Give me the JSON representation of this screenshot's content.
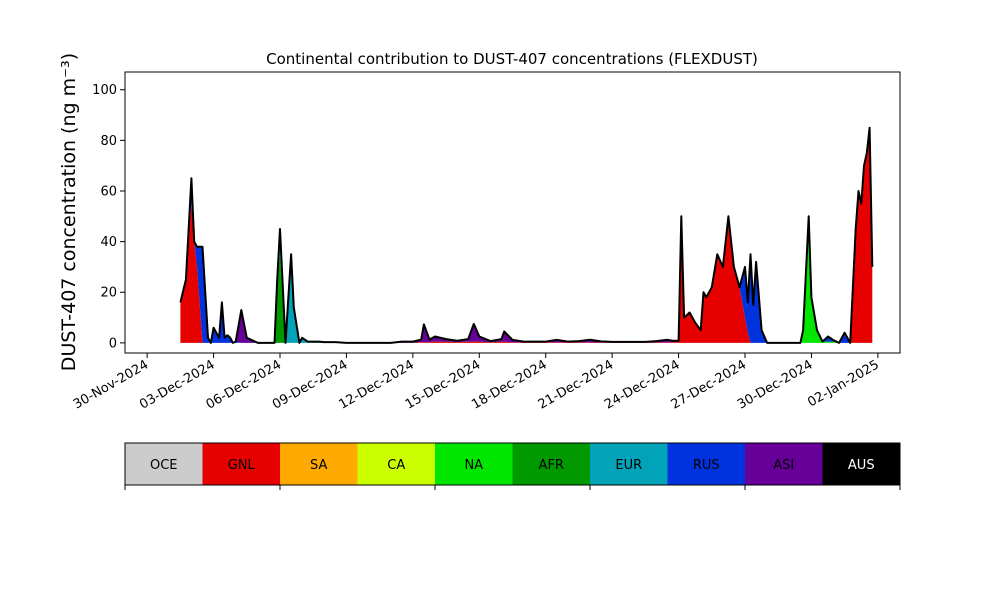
{
  "chart_data": {
    "type": "area",
    "title": "Continental contribution to DUST-407 concentrations (FLEXDUST)",
    "ylabel": "DUST-407 concentration (ng m⁻³)",
    "xlabel": "",
    "ylim": [
      -4,
      107
    ],
    "yticks": [
      0,
      20,
      40,
      60,
      80,
      100
    ],
    "xlim": [
      "2024-11-29T00:00",
      "2025-01-03T00:00"
    ],
    "xticks": [
      {
        "date": "2024-11-30",
        "label": "30-Nov-2024"
      },
      {
        "date": "2024-12-03",
        "label": "03-Dec-2024"
      },
      {
        "date": "2024-12-06",
        "label": "06-Dec-2024"
      },
      {
        "date": "2024-12-09",
        "label": "09-Dec-2024"
      },
      {
        "date": "2024-12-12",
        "label": "12-Dec-2024"
      },
      {
        "date": "2024-12-15",
        "label": "15-Dec-2024"
      },
      {
        "date": "2024-12-18",
        "label": "18-Dec-2024"
      },
      {
        "date": "2024-12-21",
        "label": "21-Dec-2024"
      },
      {
        "date": "2024-12-24",
        "label": "24-Dec-2024"
      },
      {
        "date": "2024-12-27",
        "label": "27-Dec-2024"
      },
      {
        "date": "2024-12-30",
        "label": "30-Dec-2024"
      },
      {
        "date": "2025-01-02",
        "label": "02-Jan-2025"
      }
    ],
    "grid": false,
    "legend": {
      "placement": "below",
      "entries": [
        {
          "label": "OCE",
          "color": "#cccccc"
        },
        {
          "label": "GNL",
          "color": "#e60000"
        },
        {
          "label": "SA",
          "color": "#ffaa00"
        },
        {
          "label": "CA",
          "color": "#ccff00"
        },
        {
          "label": "NA",
          "color": "#00e600"
        },
        {
          "label": "AFR",
          "color": "#009900"
        },
        {
          "label": "EUR",
          "color": "#00a3b8"
        },
        {
          "label": "RUS",
          "color": "#0033dd"
        },
        {
          "label": "ASI",
          "color": "#660099"
        },
        {
          "label": "AUS",
          "color": "#000000"
        }
      ]
    },
    "stack_order": [
      "GNL",
      "NA",
      "AFR",
      "EUR",
      "RUS",
      "ASI"
    ],
    "x": [
      "2024-12-01T12:00",
      "2024-12-01T18:00",
      "2024-12-02T00:00",
      "2024-12-02T03:00",
      "2024-12-02T06:00",
      "2024-12-02T12:00",
      "2024-12-02T18:00",
      "2024-12-02T21:00",
      "2024-12-03T00:00",
      "2024-12-03T06:00",
      "2024-12-03T09:00",
      "2024-12-03T12:00",
      "2024-12-03T15:00",
      "2024-12-03T18:00",
      "2024-12-03T21:00",
      "2024-12-04T00:00",
      "2024-12-04T06:00",
      "2024-12-04T12:00",
      "2024-12-04T18:00",
      "2024-12-05T00:00",
      "2024-12-05T06:00",
      "2024-12-05T12:00",
      "2024-12-05T18:00",
      "2024-12-05T21:00",
      "2024-12-06T00:00",
      "2024-12-06T06:00",
      "2024-12-06T12:00",
      "2024-12-06T15:00",
      "2024-12-06T21:00",
      "2024-12-07T00:00",
      "2024-12-07T06:00",
      "2024-12-07T12:00",
      "2024-12-07T18:00",
      "2024-12-08T00:00",
      "2024-12-08T12:00",
      "2024-12-09T00:00",
      "2024-12-10T00:00",
      "2024-12-11T00:00",
      "2024-12-11T12:00",
      "2024-12-12T00:00",
      "2024-12-12T09:00",
      "2024-12-12T12:00",
      "2024-12-12T18:00",
      "2024-12-13T00:00",
      "2024-12-13T12:00",
      "2024-12-14T00:00",
      "2024-12-14T12:00",
      "2024-12-14T18:00",
      "2024-12-15T00:00",
      "2024-12-15T12:00",
      "2024-12-16T00:00",
      "2024-12-16T03:00",
      "2024-12-16T12:00",
      "2024-12-17T00:00",
      "2024-12-17T12:00",
      "2024-12-18T00:00",
      "2024-12-18T12:00",
      "2024-12-19T00:00",
      "2024-12-19T12:00",
      "2024-12-20T00:00",
      "2024-12-20T12:00",
      "2024-12-21T00:00",
      "2024-12-22T00:00",
      "2024-12-22T12:00",
      "2024-12-23T00:00",
      "2024-12-23T12:00",
      "2024-12-23T18:00",
      "2024-12-24T00:00",
      "2024-12-24T03:00",
      "2024-12-24T06:00",
      "2024-12-24T12:00",
      "2024-12-24T18:00",
      "2024-12-25T00:00",
      "2024-12-25T03:00",
      "2024-12-25T06:00",
      "2024-12-25T12:00",
      "2024-12-25T18:00",
      "2024-12-26T00:00",
      "2024-12-26T06:00",
      "2024-12-26T12:00",
      "2024-12-26T18:00",
      "2024-12-27T00:00",
      "2024-12-27T03:00",
      "2024-12-27T06:00",
      "2024-12-27T09:00",
      "2024-12-27T12:00",
      "2024-12-27T18:00",
      "2024-12-28T00:00",
      "2024-12-28T03:00",
      "2024-12-28T06:00",
      "2024-12-28T12:00",
      "2024-12-28T18:00",
      "2024-12-29T00:00",
      "2024-12-29T06:00",
      "2024-12-29T12:00",
      "2024-12-29T15:00",
      "2024-12-29T21:00",
      "2024-12-30T00:00",
      "2024-12-30T06:00",
      "2024-12-30T12:00",
      "2024-12-30T18:00",
      "2024-12-31T00:00",
      "2024-12-31T06:00",
      "2024-12-31T12:00",
      "2024-12-31T18:00",
      "2025-01-01T00:00",
      "2025-01-01T03:00",
      "2025-01-01T06:00",
      "2025-01-01T09:00",
      "2025-01-01T12:00",
      "2025-01-01T15:00",
      "2025-01-01T18:00"
    ],
    "series": [
      {
        "name": "GNL",
        "values": [
          16,
          25,
          55,
          40,
          30,
          0,
          0,
          0,
          0,
          0,
          0,
          0,
          0,
          0,
          0,
          0,
          0,
          0,
          0,
          0,
          0,
          0,
          0,
          0,
          0,
          0,
          0,
          0,
          0,
          0,
          0,
          0,
          0,
          0,
          0,
          0,
          0,
          0,
          0,
          0,
          0.3,
          0.3,
          0.3,
          0.5,
          0.5,
          0.3,
          0.5,
          0.5,
          0.5,
          0.2,
          0.5,
          0.5,
          0.2,
          0.2,
          0.2,
          0.2,
          0.2,
          0.2,
          0.2,
          0.2,
          0.1,
          0.1,
          0.1,
          0.1,
          0.2,
          0.2,
          0.3,
          0.3,
          50,
          10,
          12,
          8,
          5,
          20,
          18,
          22,
          35,
          30,
          50,
          30,
          22,
          10,
          4,
          0,
          0,
          0,
          0,
          0,
          0,
          0,
          0,
          0,
          0,
          0,
          0,
          0,
          0,
          0,
          0,
          0,
          0,
          0,
          0,
          0,
          0,
          45,
          60,
          55,
          70,
          75,
          85,
          30
        ]
      },
      {
        "name": "NA",
        "values": [
          0,
          0,
          0,
          0,
          0,
          0,
          0,
          0,
          0,
          0,
          0,
          0,
          0,
          0,
          0,
          0,
          0,
          0,
          0,
          0,
          0,
          0,
          0,
          0,
          0,
          0,
          0,
          0,
          0,
          0,
          0,
          0,
          0,
          0,
          0,
          0,
          0,
          0,
          0,
          0,
          0,
          0,
          0,
          0,
          0,
          0,
          0,
          0,
          0,
          0,
          0,
          0,
          0,
          0,
          0,
          0,
          0,
          0,
          0,
          0,
          0,
          0,
          0,
          0,
          0,
          0,
          0,
          0,
          0,
          0,
          0,
          0,
          0,
          0,
          0,
          0,
          0,
          0,
          0,
          0,
          0,
          0,
          0,
          0,
          0,
          0,
          0,
          0,
          0,
          0,
          0,
          0,
          0,
          0,
          0,
          5,
          50,
          18,
          5,
          0.5,
          0.5,
          0.5,
          0,
          0,
          0,
          0,
          0,
          0,
          0,
          0,
          0,
          0
        ]
      },
      {
        "name": "AFR",
        "values": [
          0,
          0,
          0,
          0,
          0,
          0,
          0,
          0,
          0,
          0,
          0,
          0,
          0,
          0,
          0,
          0,
          0,
          0,
          0,
          0,
          0,
          0,
          0,
          25,
          35,
          0,
          0,
          0,
          0,
          0,
          0,
          0,
          0,
          0,
          0,
          0,
          0,
          0,
          0,
          0,
          0,
          0,
          0,
          0,
          0,
          0,
          0,
          0,
          0,
          0,
          0,
          0,
          0,
          0,
          0,
          0,
          0,
          0,
          0,
          0,
          0,
          0,
          0,
          0,
          0,
          0,
          0,
          0,
          0,
          0,
          0,
          0,
          0,
          0,
          0,
          0,
          0,
          0,
          0,
          0,
          0,
          0,
          0,
          0,
          0,
          0,
          0,
          0,
          0,
          0,
          0,
          0,
          0,
          0,
          0,
          0,
          0,
          0,
          0,
          0,
          0,
          0,
          0,
          0,
          0,
          0,
          0,
          0,
          0,
          0,
          0,
          0
        ]
      },
      {
        "name": "EUR",
        "values": [
          0,
          0,
          0,
          0,
          0,
          0,
          0,
          0,
          0,
          0,
          0,
          0,
          0,
          0,
          0,
          0,
          0,
          0,
          0,
          0,
          0,
          0,
          0,
          0,
          10,
          0,
          35,
          14,
          0,
          2,
          0.5,
          0.5,
          0.5,
          0.3,
          0.3,
          0,
          0,
          0,
          0,
          0,
          0,
          0,
          0,
          0,
          0,
          0,
          0,
          0,
          0,
          0,
          0,
          0,
          0,
          0,
          0,
          0,
          0,
          0,
          0,
          0,
          0,
          0,
          0,
          0,
          0,
          0,
          0,
          0,
          0,
          0,
          0,
          0,
          0,
          0,
          0,
          0,
          0,
          0,
          0,
          0,
          0,
          0,
          0,
          0,
          0,
          0,
          0,
          0,
          0,
          0,
          0,
          0,
          0,
          0,
          0,
          0,
          0,
          0,
          0,
          0,
          0,
          0,
          0,
          0,
          0,
          0,
          0,
          0,
          0,
          0,
          0,
          0
        ]
      },
      {
        "name": "RUS",
        "values": [
          0,
          0,
          10,
          0,
          8,
          38,
          2,
          0,
          6,
          2,
          16,
          2,
          3,
          2,
          0,
          0.5,
          0,
          0,
          0,
          0,
          0,
          0,
          0,
          0,
          0,
          0,
          0,
          0,
          0,
          0,
          0,
          0,
          0,
          0,
          0,
          0,
          0,
          0,
          0,
          0,
          0,
          0,
          0,
          0,
          0,
          0,
          0,
          0,
          0,
          0,
          0,
          0,
          0,
          0,
          0,
          0,
          0,
          0,
          0,
          0,
          0,
          0,
          0,
          0,
          0,
          0,
          0,
          0,
          0,
          0,
          0,
          0,
          0,
          0,
          0,
          0,
          0,
          0,
          0,
          0,
          0,
          20,
          12,
          35,
          15,
          32,
          5,
          0,
          0,
          0,
          0,
          0,
          0,
          0,
          0,
          0,
          0,
          0,
          0,
          0,
          2,
          0.5,
          0,
          3,
          0,
          0,
          0,
          0,
          0,
          0,
          0,
          0
        ]
      },
      {
        "name": "ASI",
        "values": [
          0,
          0,
          0,
          0,
          0,
          0,
          0,
          0,
          0,
          0,
          0,
          0,
          0,
          0,
          0,
          0,
          13,
          2,
          1,
          0,
          0,
          0,
          0,
          0,
          0,
          0,
          0,
          0,
          0,
          0,
          0,
          0,
          0,
          0,
          0,
          0,
          0,
          0,
          0.5,
          0.5,
          1,
          7,
          1,
          2,
          1,
          0.5,
          1,
          7,
          2,
          0.5,
          1,
          4,
          1,
          0.3,
          0.3,
          0.3,
          1,
          0.3,
          0.5,
          1,
          0.5,
          0.3,
          0.3,
          0.3,
          0.5,
          1,
          0.5,
          0.5,
          0,
          0,
          0,
          0,
          0,
          0,
          0,
          0,
          0,
          0,
          0,
          0,
          0,
          0,
          0,
          0,
          0,
          0,
          0,
          0,
          0,
          0,
          0,
          0,
          0,
          0,
          0,
          0,
          0,
          0,
          0,
          0,
          0,
          0,
          0,
          1,
          0,
          0,
          0,
          0,
          0,
          0,
          0,
          0
        ]
      }
    ]
  }
}
